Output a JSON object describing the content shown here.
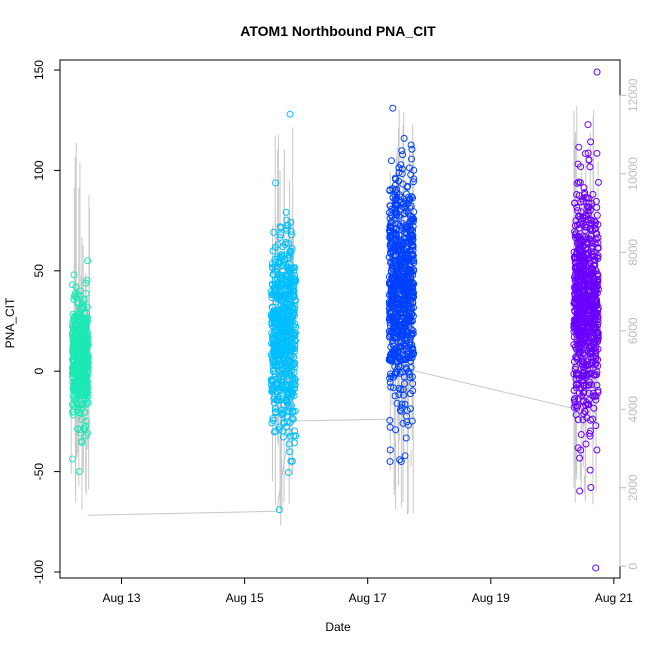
{
  "chart_data": {
    "type": "scatter",
    "title": "ATOM1 Northbound PNA_CIT",
    "xlabel": "Date",
    "ylabel": "PNA_CIT",
    "x_ticks": [
      "Aug 13",
      "Aug 15",
      "Aug 17",
      "Aug 19",
      "Aug 21"
    ],
    "x_range_days": [
      12.0,
      21.1
    ],
    "ylim": [
      -103,
      155
    ],
    "y_ticks": [
      -100,
      -50,
      0,
      50,
      100,
      150
    ],
    "y2_label": "",
    "y2_ticks": [
      0,
      2000,
      4000,
      6000,
      8000,
      10000,
      12000
    ],
    "y2_range": [
      -300,
      12900
    ],
    "grid": false,
    "legend": "none",
    "series": [
      {
        "name": "",
        "color": "#1de8b5",
        "center_day": 12.33,
        "spread_days": 0.13,
        "y_center": 5,
        "y_sd": 14,
        "y_min": -50,
        "y_max": 55,
        "count": 520
      },
      {
        "name": "",
        "color": "#00bfff",
        "center_day": 15.63,
        "spread_days": 0.2,
        "y_center": 18,
        "y_sd": 24,
        "y_min": -69,
        "y_max": 128,
        "count": 620
      },
      {
        "name": "",
        "color": "#0040ff",
        "center_day": 17.55,
        "spread_days": 0.2,
        "y_center": 40,
        "y_sd": 28,
        "y_min": -45,
        "y_max": 131,
        "count": 750
      },
      {
        "name": "",
        "color": "#6a00ff",
        "center_day": 20.55,
        "spread_days": 0.2,
        "y_center": 35,
        "y_sd": 28,
        "y_min": -98,
        "y_max": 149,
        "count": 750
      }
    ],
    "secondary_line": {
      "color": "#c8c8c8",
      "connectors": [
        [
          12.45,
          1300
        ],
        [
          15.52,
          1400
        ],
        [
          15.75,
          3700
        ],
        [
          17.55,
          3750
        ],
        [
          17.7,
          5000
        ],
        [
          20.4,
          4000
        ]
      ],
      "bursts": [
        {
          "center_day": 12.33,
          "spread_days": 0.15,
          "low": 1000,
          "high": 11500,
          "count": 28
        },
        {
          "center_day": 15.65,
          "spread_days": 0.2,
          "low": 1000,
          "high": 11200,
          "count": 36
        },
        {
          "center_day": 17.55,
          "spread_days": 0.2,
          "low": 1200,
          "high": 12200,
          "count": 40
        },
        {
          "center_day": 20.55,
          "spread_days": 0.2,
          "low": 1500,
          "high": 11800,
          "count": 40
        }
      ]
    }
  }
}
